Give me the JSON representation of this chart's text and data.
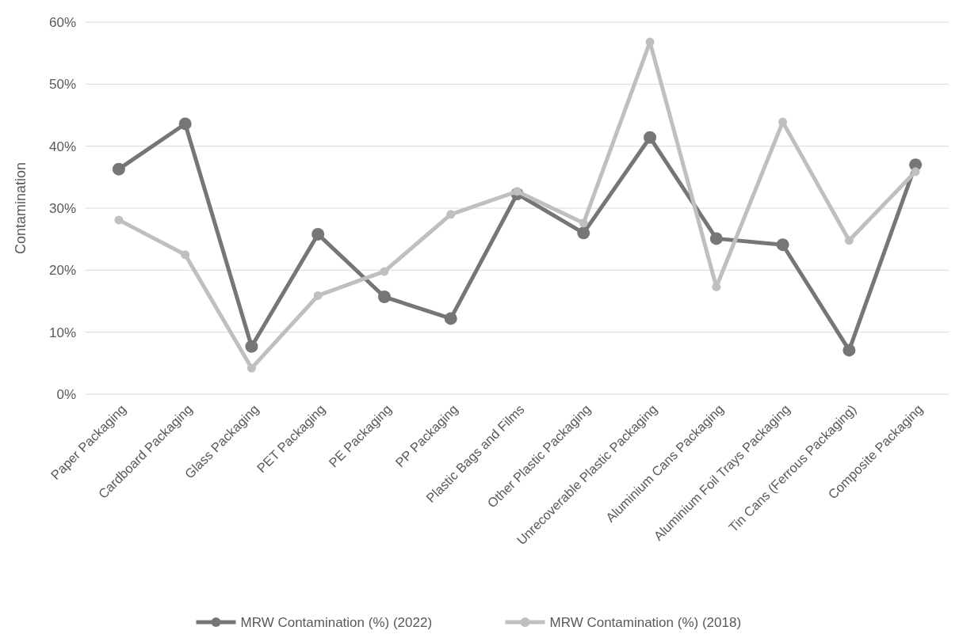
{
  "chart_data": {
    "type": "line",
    "ylabel": "Contamination",
    "categories": [
      "Paper Packaging",
      "Cardboard Packaging",
      "Glass Packaging",
      "PET Packaging",
      "PE Packaging",
      "PP Packaging",
      "Plastic Bags and Films",
      "Other Plastic Packaging",
      "Unrecoverable Plastic Packaging",
      "Aluminium Cans Packaging",
      "Aluminium Foil Trays Packaging",
      "Tin Cans (Ferrous Packaging)",
      "Composite Packaging"
    ],
    "series": [
      {
        "name": "MRW Contamination (%) (2022)",
        "color": "#767676",
        "values": [
          36.3,
          43.6,
          7.7,
          25.8,
          15.7,
          12.2,
          32.3,
          26.0,
          41.4,
          25.1,
          24.1,
          7.1,
          37.0
        ]
      },
      {
        "name": "MRW Contamination (%) (2018)",
        "color": "#bfbfbf",
        "values": [
          28.1,
          22.5,
          4.2,
          15.9,
          19.8,
          29.0,
          32.7,
          27.6,
          56.8,
          17.3,
          43.9,
          24.8,
          35.9
        ]
      }
    ],
    "ylim": [
      0,
      60
    ],
    "yticks": [
      {
        "value": 0,
        "label": "0%"
      },
      {
        "value": 10,
        "label": "10%"
      },
      {
        "value": 20,
        "label": "20%"
      },
      {
        "value": 30,
        "label": "30%"
      },
      {
        "value": 40,
        "label": "40%"
      },
      {
        "value": 50,
        "label": "50%"
      },
      {
        "value": 60,
        "label": "60%"
      }
    ],
    "grid": "y",
    "legend": "bottom",
    "marker": "circle",
    "line_style": "solid"
  }
}
